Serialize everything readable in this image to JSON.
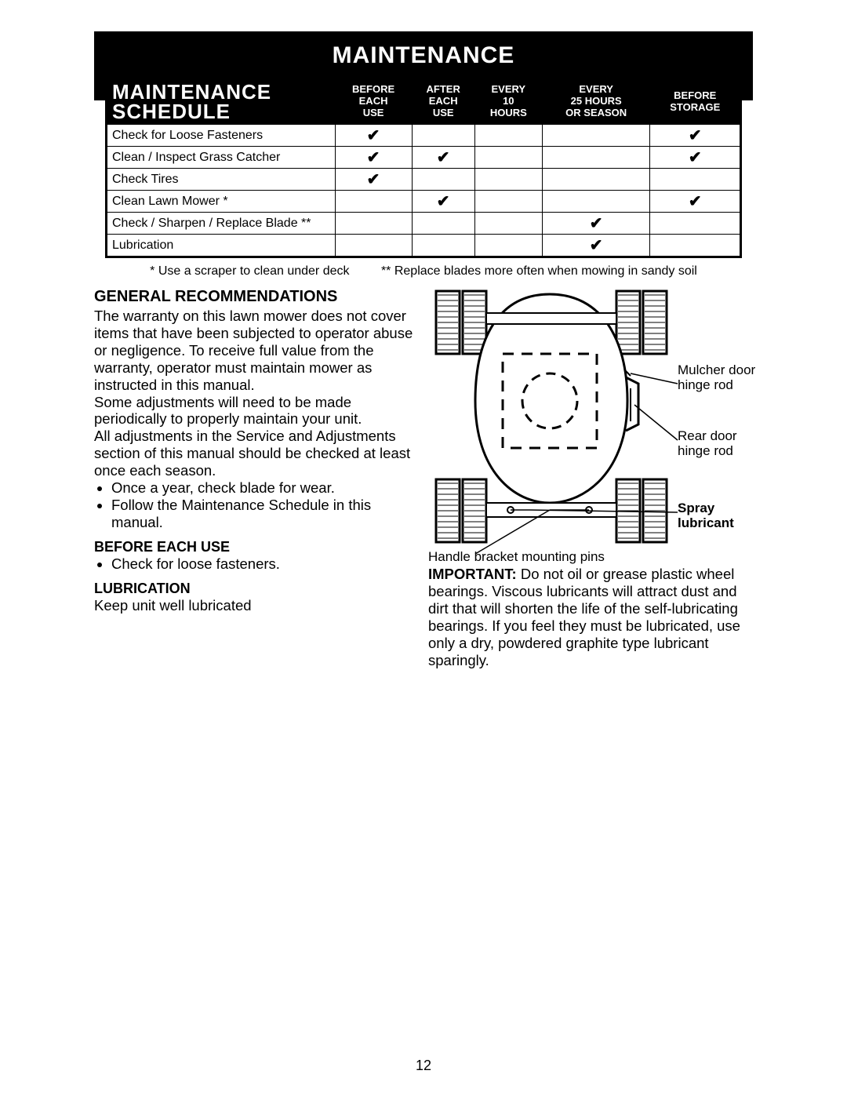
{
  "banner": "MAINTENANCE",
  "schedule": {
    "title_line1": "MAINTENANCE",
    "title_line2": "SCHEDULE",
    "columns": [
      "BEFORE<br>EACH<br>USE",
      "AFTER<br>EACH<br>USE",
      "EVERY<br>10<br>HOURS",
      "EVERY<br>25 HOURS<br>OR SEASON",
      "BEFORE<br>STORAGE"
    ],
    "rows": [
      {
        "label": "Check for Loose Fasteners",
        "checks": [
          true,
          false,
          false,
          false,
          true
        ]
      },
      {
        "label": "Clean / Inspect Grass Catcher",
        "checks": [
          true,
          true,
          false,
          false,
          true
        ]
      },
      {
        "label": "Check Tires",
        "checks": [
          true,
          false,
          false,
          false,
          false
        ]
      },
      {
        "label": "Clean Lawn Mower *",
        "checks": [
          false,
          true,
          false,
          false,
          true
        ]
      },
      {
        "label": "Check / Sharpen / Replace Blade **",
        "checks": [
          false,
          false,
          false,
          true,
          false
        ]
      },
      {
        "label": "Lubrication",
        "checks": [
          false,
          false,
          false,
          true,
          false
        ]
      }
    ],
    "footnote1": "* Use a scraper to clean under deck",
    "footnote2": "** Replace blades more often when mowing in sandy soil",
    "check_glyph": "✔"
  },
  "left": {
    "h_general": "GENERAL RECOMMENDATIONS",
    "p_general1": "The warranty on this lawn mower does not cover items that have been subjected to operator abuse or negligence.  To receive full value from the warranty, operator must maintain mower as instructed in this manual.",
    "p_general2": "Some adjustments will need to be made periodically to properly maintain your unit.",
    "p_general3": "All adjustments in the Service and Adjustments section of this manual should be checked at least once each season.",
    "bullet1": "Once a year, check blade for wear.",
    "bullet2": "Follow the Maintenance Schedule in this manual.",
    "h_before": "BEFORE EACH USE",
    "bullet_before": "Check for loose fasteners.",
    "h_lub": "LUBRICATION",
    "p_lub": "Keep unit well lubricated"
  },
  "right": {
    "lbl_mulcher": "Mulcher door hinge rod",
    "lbl_rear": "Rear door hinge rod",
    "lbl_spray": "Spray lubricant",
    "lbl_bracket": "Handle bracket mounting pins",
    "important_label": "IMPORTANT:",
    "important_text": "  Do not oil or grease plastic wheel bearings.  Viscous lubricants will attract dust and dirt that will shorten the life of the self-lubricating bearings.  If you feel they must be lubricated, use only a dry, powdered graphite type lubricant sparingly."
  },
  "page_number": "12",
  "colors": {
    "black": "#000000",
    "white": "#ffffff"
  }
}
